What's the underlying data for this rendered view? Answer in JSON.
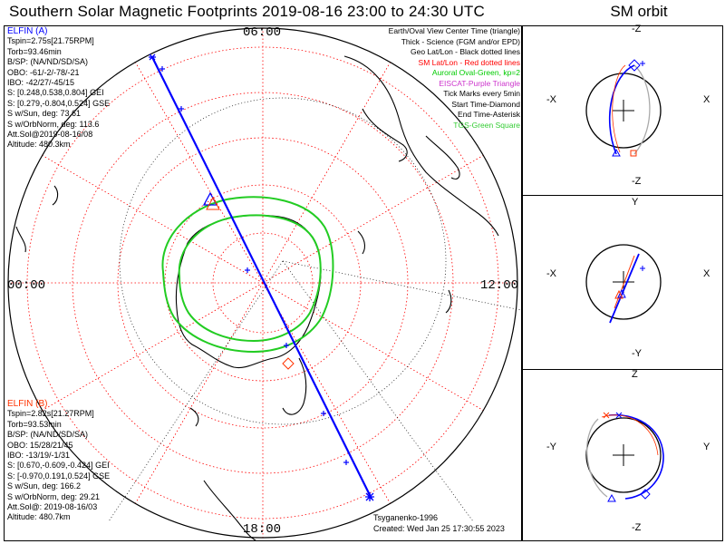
{
  "title": "Southern Solar Magnetic Footprints 2019-08-16 23:00 to 24:30 UTC",
  "orbit_title": "SM orbit",
  "hour_labels": {
    "top": "06:00",
    "left": "00:00",
    "right": "12:00",
    "bottom": "18:00"
  },
  "elfin_a": {
    "name": "ELFIN (A)",
    "color": "#0000ff",
    "lines": [
      "Tspin=2.75s[21.75RPM]",
      "Torb=93.46min",
      "B/SP: (NA/ND/SD/SA)",
      "OBO: -61/-2/-78/-21",
      "IBO: -42/27/-45/15",
      "S: [0.248,0.538,0.804] GEI",
      "S: [0.279,-0.804,0.524] GSE",
      "S w/Sun, deg: 73.61",
      "S w/OrbNorm, deg: 113.6",
      "Att.Sol@2019-08-16/08",
      "Altitude: 480.3km"
    ]
  },
  "elfin_b": {
    "name": "ELFIN (B)",
    "color": "#ff3300",
    "lines": [
      "Tspin=2.82s[21.27RPM]",
      "Torb=93.53min",
      "B/SP: (NA/ND/SD/SA)",
      "OBO: 15/28/21/45",
      "IBO: -13/19/-1/31",
      "S: [0.670,-0.609,-0.424] GEI",
      "S: [-0.970,0.191,0.524] GSE",
      "S w/Sun, deg: 166.2",
      "S w/OrbNorm, deg: 29.21",
      "Att.Sol@: 2019-08-16/03",
      "Altitude: 480.7km"
    ]
  },
  "legend": [
    {
      "text": "Earth/Oval View Center Time (triangle)",
      "color": "#000000"
    },
    {
      "text": "Thick - Science (FGM and/or EPD)",
      "color": "#000000"
    },
    {
      "text": "Geo Lat/Lon - Black dotted lines",
      "color": "#000000"
    },
    {
      "text": "SM Lat/Lon - Red dotted lines",
      "color": "#ff0000"
    },
    {
      "text": "Auroral Oval-Green, kp=2",
      "color": "#00cc00"
    },
    {
      "text": "EISCAT-Purple Triangle",
      "color": "#cc33cc"
    },
    {
      "text": "Tick Marks every 5min",
      "color": "#000000"
    },
    {
      "text": "Start Time-Diamond",
      "color": "#000000"
    },
    {
      "text": "End Time-Asterisk",
      "color": "#000000"
    },
    {
      "text": "TGS-Green Square",
      "color": "#33cc33"
    }
  ],
  "credits": {
    "model": "Tsyganenko-1996",
    "created": "Created: Wed Jan 25 17:30:55 2023"
  },
  "orbit_panels": [
    {
      "top": "-Z",
      "bottom": "-Z",
      "left": "-X",
      "right": "X"
    },
    {
      "top": "Y",
      "bottom": "-Y",
      "left": "-X",
      "right": "X"
    },
    {
      "top": "Z",
      "bottom": "-Z",
      "left": "-Y",
      "right": "Y"
    }
  ],
  "colors": {
    "elfin_a": "#0000ff",
    "elfin_b": "#ff3300",
    "oval": "#00cc00",
    "sm_grid": "#ff0000",
    "geo_grid": "#000000"
  }
}
